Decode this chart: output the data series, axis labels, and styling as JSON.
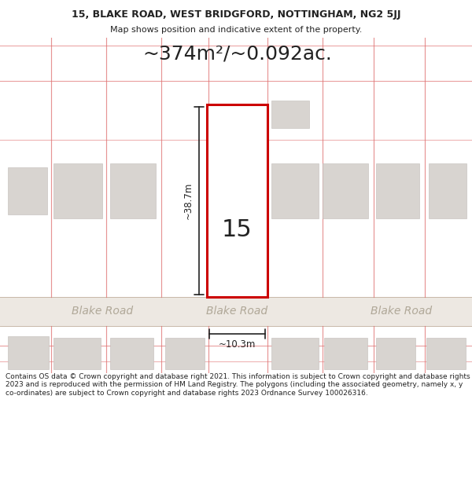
{
  "title_line1": "15, BLAKE ROAD, WEST BRIDGFORD, NOTTINGHAM, NG2 5JJ",
  "title_line2": "Map shows position and indicative extent of the property.",
  "area_text": "~374m²/~0.092ac.",
  "property_number": "15",
  "width_label": "~10.3m",
  "height_label": "~38.7m",
  "road_label": "Blake Road",
  "footer_text": "Contains OS data © Crown copyright and database right 2021. This information is subject to Crown copyright and database rights 2023 and is reproduced with the permission of HM Land Registry. The polygons (including the associated geometry, namely x, y co-ordinates) are subject to Crown copyright and database rights 2023 Ordnance Survey 100026316.",
  "bg_color": "#ffffff",
  "road_fill": "#ede8e2",
  "plot_line_color": "#e07070",
  "highlight_plot_color": "#cc0000",
  "building_fill": "#d8d4d0",
  "building_edge": "#c0bcb8",
  "dim_line_color": "#222222",
  "road_text_color": "#b0a898",
  "title_color": "#222222",
  "footer_color": "#222222",
  "map_line_color": "#c8b8b8",
  "title_fontsize": 9.0,
  "subtitle_fontsize": 8.0,
  "area_fontsize": 18,
  "number_fontsize": 22,
  "road_fontsize": 10,
  "dim_fontsize": 8.5,
  "footer_fontsize": 6.5
}
